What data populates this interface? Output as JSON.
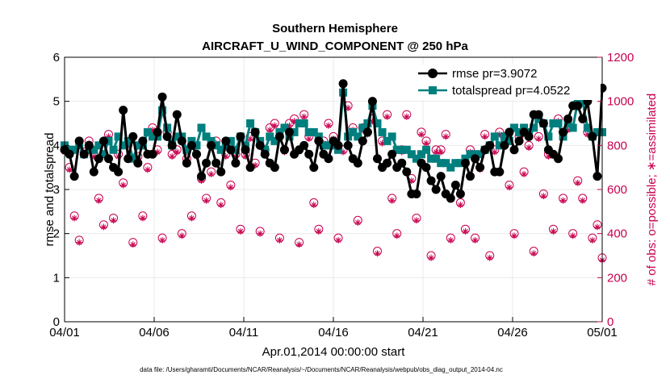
{
  "chart_data": {
    "type": "line",
    "title": "Southern Hemisphere",
    "subtitle": "AIRCRAFT_U_WIND_COMPONENT @ 250 hPa",
    "xlabel": "Apr.01,2014 00:00:00 start",
    "ylabel": "rmse and totalspread",
    "ylabel_right": "# of obs: o=possible; ∗=assimilated",
    "footnote": "data file: /Users/gharamti/Documents/NCAR/Reanalysis/~/Documents/NCAR/Reanalysis/webpub/obs_diag_output_2014-04.nc",
    "x_tick_labels": [
      "04/01",
      "04/06",
      "04/11",
      "04/16",
      "04/21",
      "04/26",
      "05/01"
    ],
    "x_tick_days": [
      0,
      5,
      10,
      15,
      20,
      25,
      30
    ],
    "xlim": [
      0,
      30
    ],
    "ylim": [
      0,
      6
    ],
    "y_ticks": [
      0,
      1,
      2,
      3,
      4,
      5,
      6
    ],
    "ylim_right": [
      0,
      1200
    ],
    "y_ticks_right": [
      0,
      200,
      400,
      600,
      800,
      1000,
      1200
    ],
    "legend_position": "top-right",
    "series": [
      {
        "name": "rmse pr=3.9072",
        "color": "#000000",
        "values": [
          3.9,
          3.8,
          3.3,
          4.1,
          3.8,
          4.0,
          3.4,
          3.7,
          4.1,
          3.7,
          3.5,
          3.4,
          4.8,
          3.7,
          4.2,
          3.6,
          4.1,
          3.8,
          3.8,
          4.3,
          5.1,
          4.2,
          4.0,
          4.7,
          4.1,
          3.6,
          4.0,
          3.8,
          3.3,
          3.6,
          4.0,
          3.6,
          3.4,
          4.1,
          3.9,
          3.6,
          4.2,
          3.9,
          3.5,
          4.3,
          4.0,
          3.8,
          3.6,
          3.5,
          4.2,
          3.9,
          4.3,
          3.8,
          3.9,
          4.0,
          3.8,
          3.5,
          4.1,
          3.8,
          3.7,
          4.1,
          4.0,
          5.4,
          4.0,
          3.7,
          3.6,
          4.1,
          4.3,
          5.0,
          3.7,
          3.5,
          3.6,
          3.8,
          3.5,
          3.6,
          3.4,
          2.9,
          2.9,
          3.6,
          3.5,
          3.2,
          3.0,
          3.3,
          2.9,
          2.8,
          3.1,
          2.9,
          3.6,
          3.3,
          3.7,
          3.5,
          3.9,
          4.0,
          3.4,
          3.4,
          4.0,
          4.3,
          3.9,
          4.1,
          4.3,
          4.2,
          4.7,
          4.7,
          4.5,
          3.9,
          3.8,
          3.7,
          4.3,
          4.6,
          4.9,
          4.9,
          4.6,
          5.0,
          4.2,
          3.3,
          5.3
        ]
      },
      {
        "name": "totalspread pr=4.0522",
        "color": "#007f7f",
        "values": [
          4.0,
          3.9,
          3.9,
          4.0,
          3.8,
          3.9,
          3.9,
          4.0,
          3.8,
          4.1,
          3.9,
          4.2,
          4.0,
          4.1,
          3.7,
          4.0,
          4.0,
          4.3,
          4.2,
          4.2,
          4.8,
          4.4,
          4.0,
          4.2,
          4.2,
          3.9,
          4.1,
          4.0,
          4.4,
          4.2,
          4.1,
          4.0,
          3.9,
          4.0,
          4.1,
          3.9,
          4.2,
          4.0,
          4.5,
          4.3,
          4.1,
          3.9,
          4.2,
          4.1,
          4.3,
          4.4,
          4.2,
          4.3,
          4.5,
          4.5,
          4.3,
          4.3,
          4.2,
          4.0,
          4.0,
          4.0,
          3.9,
          5.2,
          4.2,
          4.3,
          4.2,
          4.4,
          4.5,
          4.9,
          4.5,
          4.3,
          4.1,
          4.2,
          3.9,
          3.9,
          3.9,
          3.8,
          3.7,
          3.8,
          3.9,
          3.7,
          3.7,
          3.6,
          3.6,
          3.5,
          3.6,
          3.6,
          3.7,
          3.8,
          3.8,
          3.8,
          3.9,
          4.0,
          4.2,
          4.0,
          4.2,
          4.1,
          4.4,
          4.3,
          4.4,
          4.3,
          4.4,
          4.6,
          4.5,
          4.2,
          4.5,
          4.5,
          4.2,
          4.5,
          4.4,
          5.0,
          5.0,
          4.4,
          4.2,
          4.3,
          4.3
        ]
      },
      {
        "name": "possible obs",
        "color": "#c8004e",
        "axis": "right",
        "values": [
          780,
          700,
          480,
          370,
          770,
          820,
          760,
          560,
          440,
          850,
          470,
          760,
          630,
          810,
          360,
          750,
          480,
          700,
          880,
          780,
          380,
          860,
          760,
          780,
          400,
          740,
          480,
          760,
          650,
          560,
          680,
          820,
          540,
          760,
          620,
          760,
          420,
          760,
          840,
          720,
          410,
          780,
          880,
          900,
          380,
          780,
          900,
          920,
          360,
          940,
          840,
          540,
          420,
          820,
          900,
          840,
          380,
          780,
          980,
          880,
          460,
          880,
          860,
          920,
          320,
          820,
          940,
          560,
          400,
          780,
          940,
          650,
          470,
          860,
          820,
          300,
          780,
          780,
          850,
          380,
          1040,
          540,
          420,
          780,
          380,
          700,
          850,
          300,
          780,
          860,
          840,
          620,
          400,
          840,
          680,
          800,
          320,
          840,
          580,
          760,
          420,
          920,
          560,
          880,
          400,
          640,
          560,
          860,
          380,
          440,
          290
        ]
      },
      {
        "name": "assimilated obs",
        "color": "#c8004e",
        "axis": "right",
        "values": [
          770,
          690,
          470,
          360,
          760,
          810,
          750,
          550,
          430,
          840,
          460,
          750,
          620,
          800,
          350,
          740,
          470,
          690,
          870,
          770,
          370,
          850,
          750,
          770,
          390,
          730,
          470,
          750,
          640,
          550,
          670,
          810,
          530,
          750,
          610,
          750,
          410,
          750,
          830,
          710,
          400,
          770,
          870,
          890,
          370,
          770,
          890,
          910,
          350,
          930,
          830,
          530,
          410,
          810,
          890,
          830,
          370,
          770,
          970,
          870,
          450,
          870,
          850,
          910,
          310,
          810,
          930,
          550,
          390,
          770,
          930,
          640,
          460,
          850,
          810,
          290,
          770,
          770,
          840,
          370,
          1030,
          530,
          410,
          770,
          370,
          690,
          840,
          290,
          770,
          850,
          830,
          610,
          390,
          830,
          670,
          790,
          310,
          830,
          570,
          750,
          410,
          910,
          550,
          870,
          390,
          630,
          550,
          850,
          370,
          430,
          280
        ]
      }
    ]
  }
}
